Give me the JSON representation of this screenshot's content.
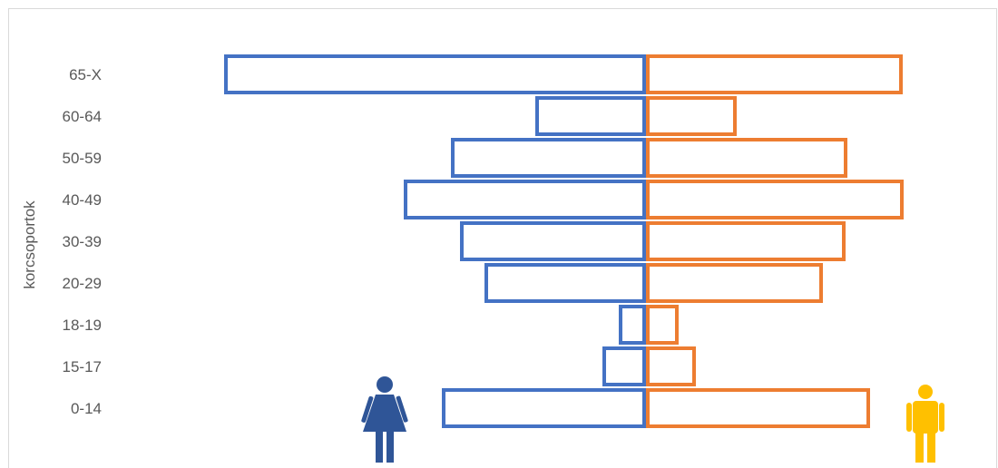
{
  "chart_data": {
    "type": "bar",
    "orientation": "horizontal",
    "layout": "population-pyramid",
    "ylabel": "korcsoportok",
    "categories": [
      "65-X",
      "60-64",
      "50-59",
      "40-49",
      "30-39",
      "20-29",
      "18-19",
      "15-17",
      "0-14"
    ],
    "series": [
      {
        "side": "left",
        "color": "#4472C4",
        "icon": "female-person-icon",
        "icon_color": "#2F5597",
        "values": [
          465,
          122,
          215,
          267,
          205,
          178,
          30,
          48,
          225
        ]
      },
      {
        "side": "right",
        "color": "#ED7D31",
        "icon": "male-person-icon",
        "icon_color": "#FFC000",
        "values": [
          283,
          100,
          222,
          284,
          220,
          195,
          36,
          55,
          247
        ]
      }
    ],
    "grid": false,
    "legend": "none"
  }
}
